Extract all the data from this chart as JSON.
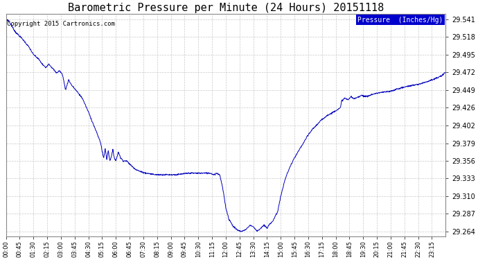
{
  "title": "Barometric Pressure per Minute (24 Hours) 20151118",
  "copyright_text": "Copyright 2015 Cartronics.com",
  "legend_text": "Pressure  (Inches/Hg)",
  "yticks": [
    29.264,
    29.287,
    29.31,
    29.333,
    29.356,
    29.379,
    29.402,
    29.426,
    29.449,
    29.472,
    29.495,
    29.518,
    29.541
  ],
  "ylim": [
    29.257,
    29.548
  ],
  "xtick_labels": [
    "00:00",
    "00:45",
    "01:30",
    "02:15",
    "03:00",
    "03:45",
    "04:30",
    "05:15",
    "06:00",
    "06:45",
    "07:30",
    "08:15",
    "09:00",
    "09:45",
    "10:30",
    "11:15",
    "12:00",
    "12:45",
    "13:30",
    "14:15",
    "15:00",
    "15:45",
    "16:30",
    "17:15",
    "18:00",
    "18:45",
    "19:30",
    "20:15",
    "21:00",
    "21:45",
    "22:30",
    "23:15"
  ],
  "line_color": "#0000bb",
  "background_color": "#ffffff",
  "grid_color": "#bbbbbb",
  "title_fontsize": 11,
  "copyright_fontsize": 6.5,
  "legend_bg_color": "#0000cc",
  "legend_text_color": "#ffffff",
  "legend_fontsize": 7,
  "ytick_fontsize": 7,
  "xtick_fontsize": 6
}
